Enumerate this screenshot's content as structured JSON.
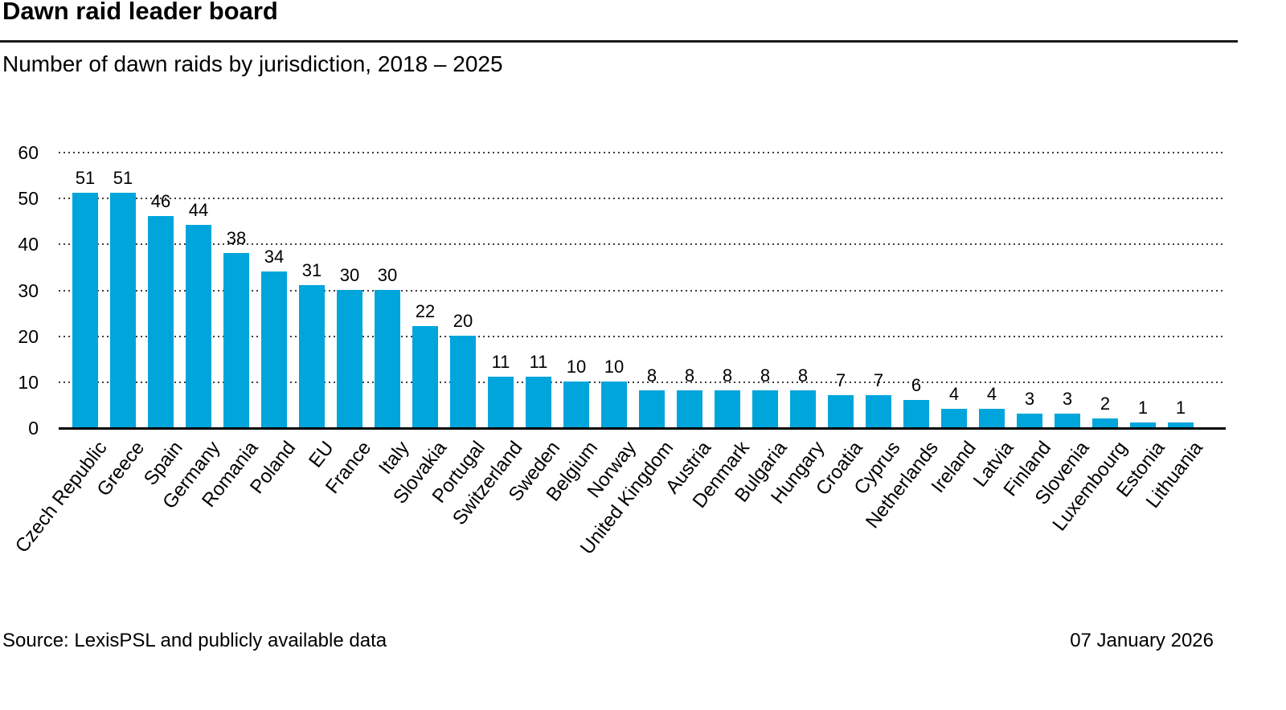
{
  "header": {
    "title": "Dawn raid leader board",
    "subtitle": "Number of dawn raids by jurisdiction, 2018 – 2025"
  },
  "chart_data": {
    "type": "bar",
    "title": "Dawn raid leader board",
    "subtitle": "Number of dawn raids by jurisdiction, 2018 – 2025",
    "categories": [
      "Czech Republic",
      "Greece",
      "Spain",
      "Germany",
      "Romania",
      "Poland",
      "EU",
      "France",
      "Italy",
      "Slovakia",
      "Portugal",
      "Switzerland",
      "Sweden",
      "Belgium",
      "Norway",
      "United Kingdom",
      "Austria",
      "Denmark",
      "Bulgaria",
      "Hungary",
      "Croatia",
      "Cyprus",
      "Netherlands",
      "Ireland",
      "Latvia",
      "Finland",
      "Slovenia",
      "Luxembourg",
      "Estonia",
      "Lithuania"
    ],
    "values": [
      51,
      51,
      46,
      44,
      38,
      34,
      31,
      30,
      30,
      22,
      20,
      11,
      11,
      10,
      10,
      8,
      8,
      8,
      8,
      8,
      7,
      7,
      6,
      4,
      4,
      3,
      3,
      2,
      1,
      1
    ],
    "xlabel": "",
    "ylabel": "",
    "ylim": [
      0,
      60
    ],
    "yticks": [
      0,
      10,
      20,
      30,
      40,
      50,
      60
    ],
    "grid": "dotted-horizontal",
    "legend": "none",
    "value_labels": true,
    "x_tick_rotation_deg": 52,
    "bar_color": "#00a5dc",
    "axis_color": "#000000",
    "gridline_color": "#3d3d3d"
  },
  "footer": {
    "source": "Source: LexisPSL and publicly available data",
    "date": "07 January 2026"
  }
}
